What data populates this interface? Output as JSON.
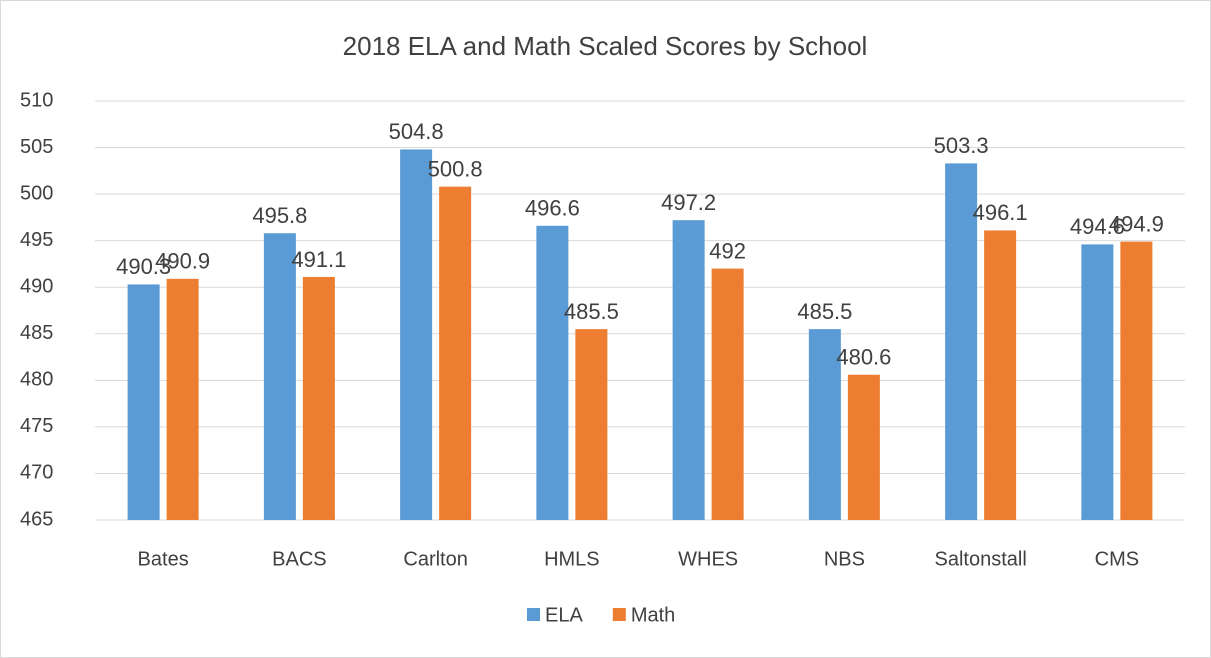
{
  "chart_data": {
    "type": "bar",
    "title": "2018 ELA and Math Scaled Scores by School",
    "categories": [
      "Bates",
      "BACS",
      "Carlton",
      "HMLS",
      "WHES",
      "NBS",
      "Saltonstall",
      "CMS"
    ],
    "series": [
      {
        "name": "ELA",
        "color": "#5b9bd5",
        "values": [
          490.3,
          495.8,
          504.8,
          496.6,
          497.2,
          485.5,
          503.3,
          494.6
        ]
      },
      {
        "name": "Math",
        "color": "#ed7d31",
        "values": [
          490.9,
          491.1,
          500.8,
          485.5,
          492,
          480.6,
          496.1,
          494.9
        ]
      }
    ],
    "ylim": [
      465,
      510
    ],
    "yticks": [
      465,
      470,
      475,
      480,
      485,
      490,
      495,
      500,
      505,
      510
    ],
    "grid": true,
    "legend": "bottom"
  }
}
